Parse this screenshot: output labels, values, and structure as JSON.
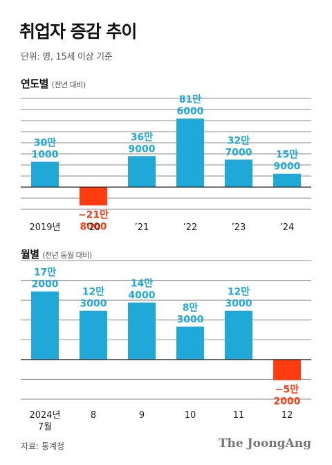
{
  "title": "취업자 증감 추이",
  "unit_note": "단위: 명, 15세 이상 기준",
  "colors": {
    "positive": "#20a8d8",
    "negative": "#ff3b10",
    "grid": "#8a8a8a",
    "zero": "#222222"
  },
  "chart_data": [
    {
      "type": "bar",
      "section_title": "연도별",
      "section_subtitle": "(전년 대비)",
      "categories": [
        "2019년",
        "’20",
        "’21",
        "’22",
        "’23",
        "’24"
      ],
      "values": [
        301000,
        -218000,
        369000,
        816000,
        327000,
        159000
      ],
      "value_labels": [
        [
          "30만",
          "1000"
        ],
        [
          "−21만",
          "8000"
        ],
        [
          "36만",
          "9000"
        ],
        [
          "81만",
          "6000"
        ],
        [
          "32만",
          "7000"
        ],
        [
          "15만",
          "9000"
        ]
      ],
      "ylim": [
        -264000,
        1056000
      ],
      "grid": true
    },
    {
      "type": "bar",
      "section_title": "월별",
      "section_subtitle": "(전년 동월 대비)",
      "categories": [
        "2024년\n7월",
        "8",
        "9",
        "10",
        "11",
        "12"
      ],
      "values": [
        172000,
        123000,
        144000,
        83000,
        123000,
        -52000
      ],
      "value_labels": [
        [
          "17만",
          "2000"
        ],
        [
          "12만",
          "3000"
        ],
        [
          "14만",
          "4000"
        ],
        [
          "8만",
          "3000"
        ],
        [
          "12만",
          "3000"
        ],
        [
          "−5만",
          "2000"
        ]
      ],
      "ylim": [
        -100000,
        250000
      ],
      "grid": true
    }
  ],
  "footer": {
    "source": "자료: 통계청",
    "brand": "The JoongAng"
  }
}
